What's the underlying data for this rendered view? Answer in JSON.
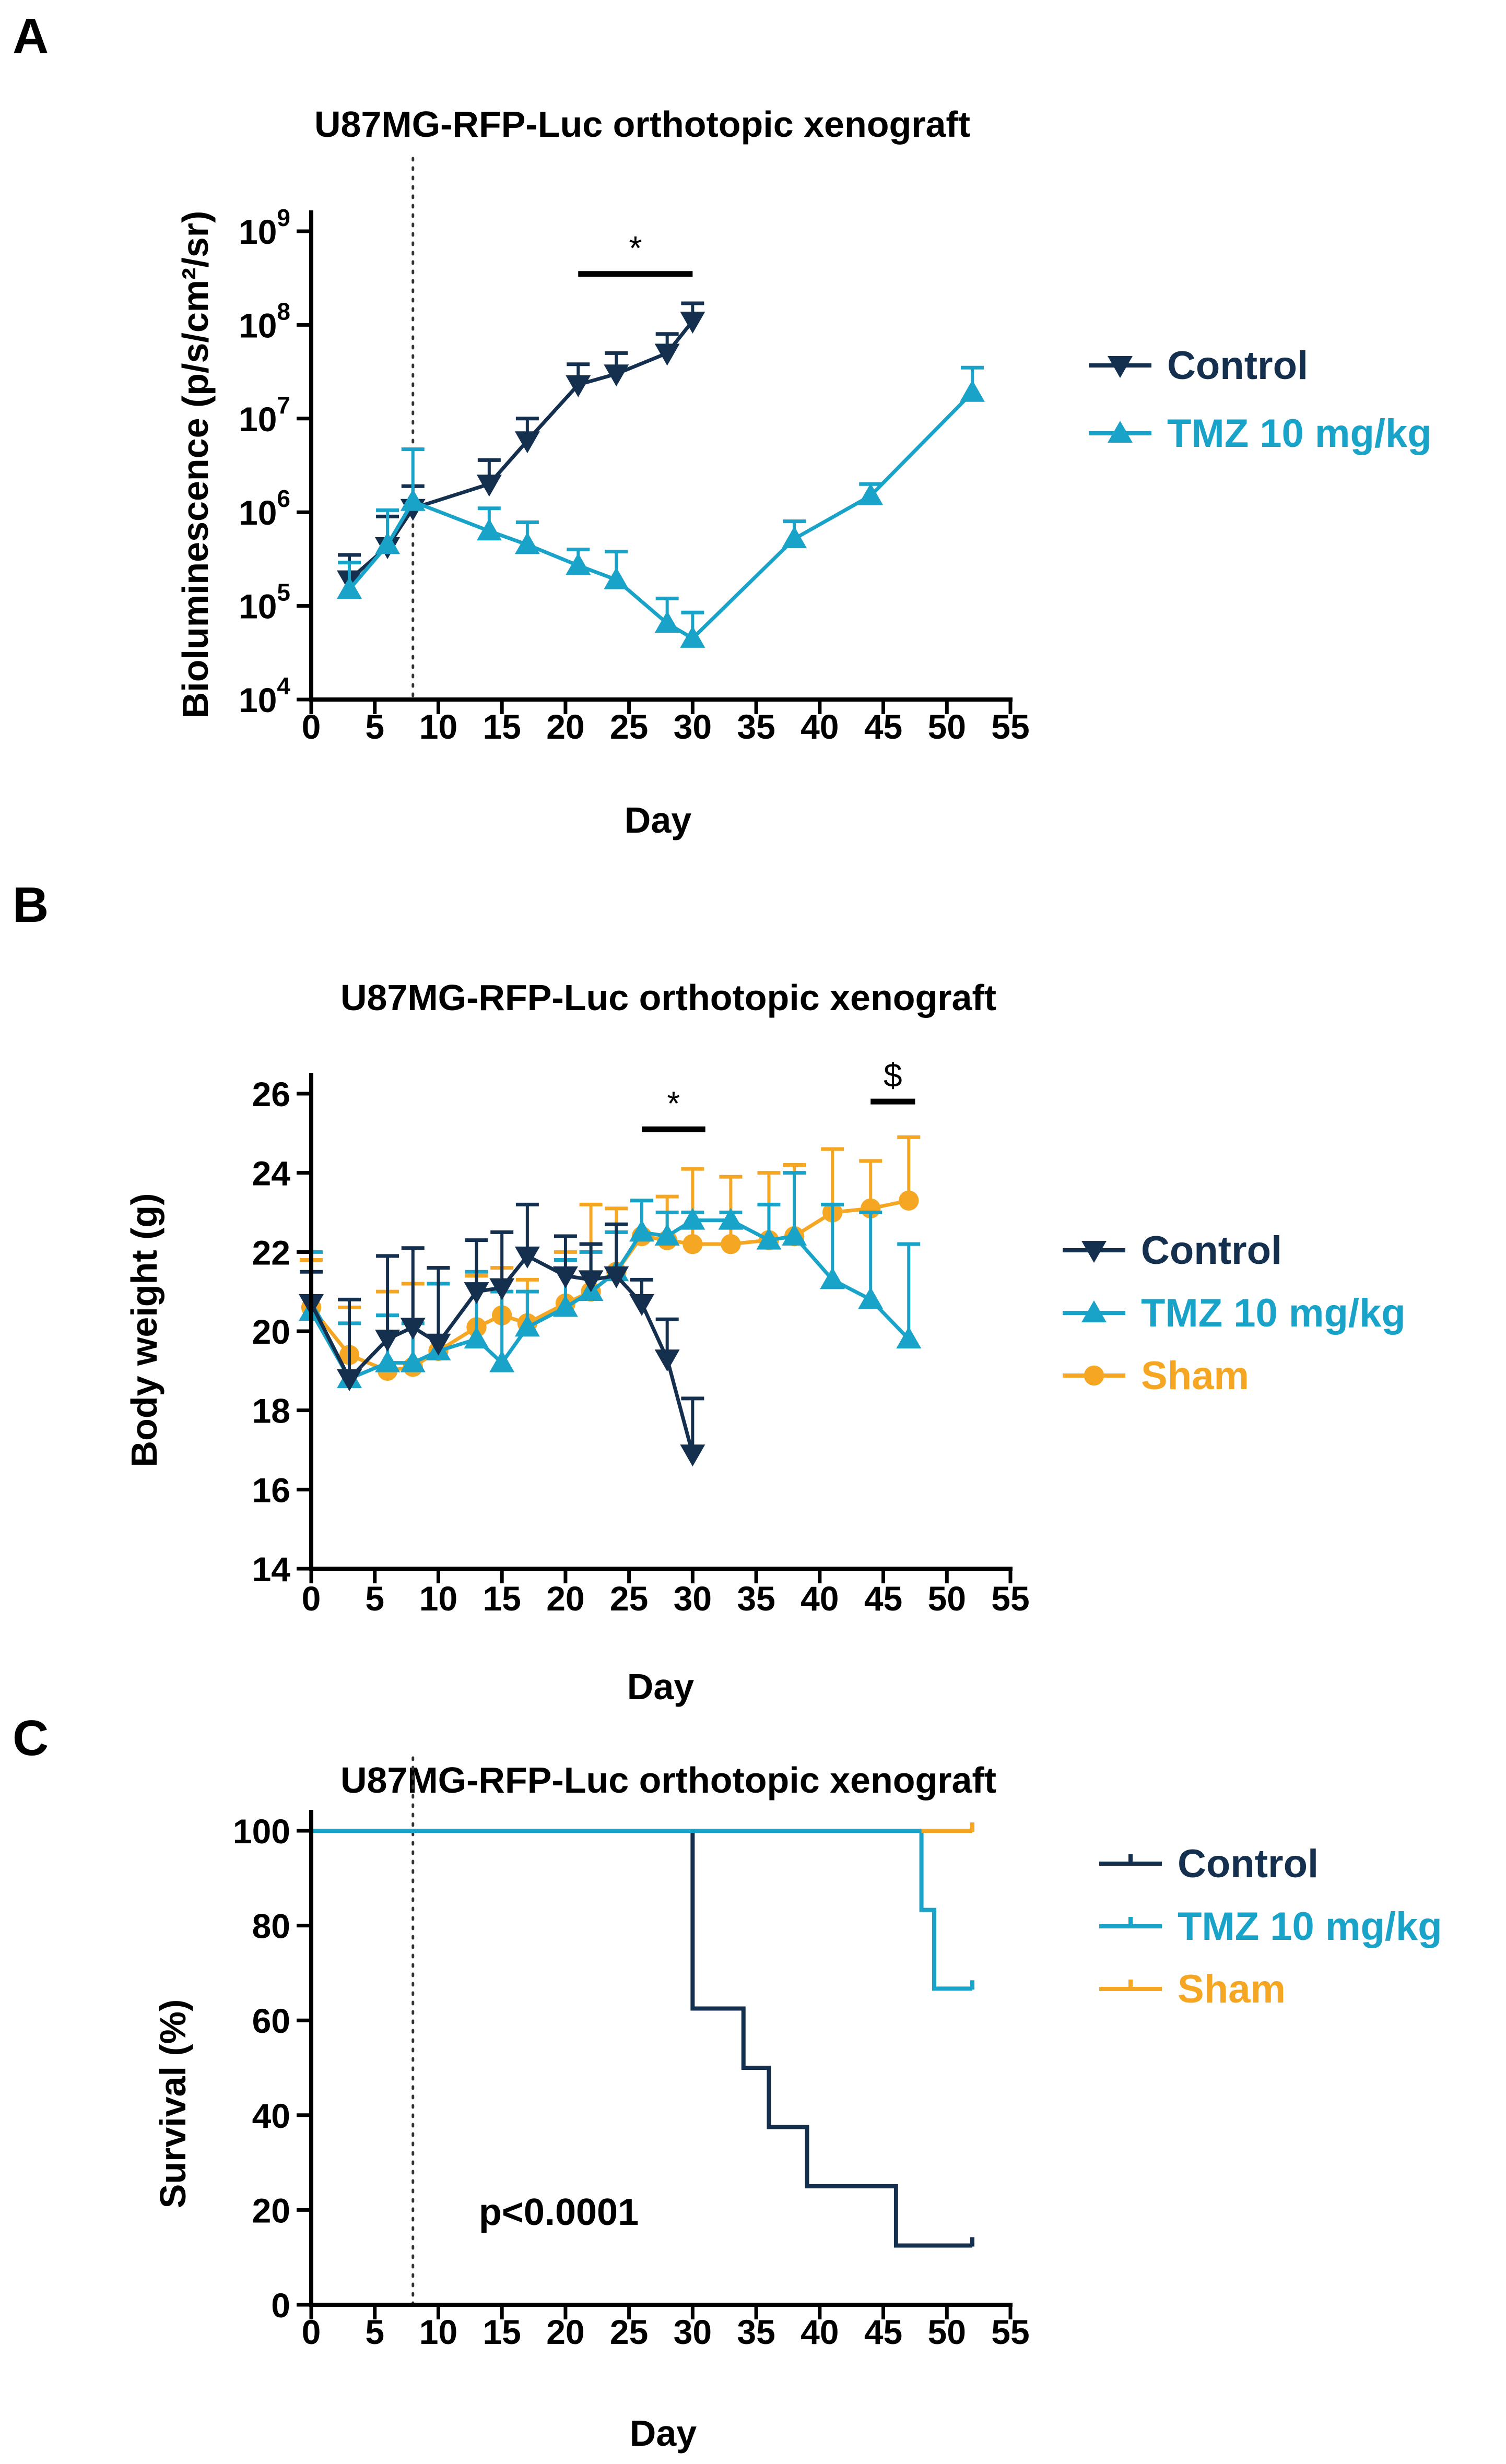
{
  "colors": {
    "control": "#15304F",
    "tmz": "#1AA3C9",
    "sham": "#F5A623",
    "axis": "#000000"
  },
  "chart_data": [
    {
      "panel": "A",
      "type": "line",
      "title": "U87MG-RFP-Luc orthotopic xenograft",
      "xlabel": "Day",
      "ylabel": "Bioluminescence (p/s/cm²/sr)",
      "yscale": "log",
      "xlim": [
        0,
        55
      ],
      "ylim": [
        10000,
        1000000000
      ],
      "xticks": [
        0,
        5,
        10,
        15,
        20,
        25,
        30,
        35,
        40,
        45,
        50,
        55
      ],
      "yticks": [
        {
          "value": 10000,
          "base": "10",
          "exp": "4"
        },
        {
          "value": 100000,
          "base": "10",
          "exp": "5"
        },
        {
          "value": 1000000,
          "base": "10",
          "exp": "6"
        },
        {
          "value": 10000000,
          "base": "10",
          "exp": "7"
        },
        {
          "value": 100000000,
          "base": "10",
          "exp": "8"
        },
        {
          "value": 1000000000,
          "base": "10",
          "exp": "9"
        }
      ],
      "vline_day": 8,
      "significance": [
        {
          "x_start": 21,
          "x_end": 30,
          "y": 350000000,
          "label": "*"
        }
      ],
      "legend": {
        "position": "right",
        "entries": [
          "Control",
          "TMZ 10 mg/kg"
        ]
      },
      "series": [
        {
          "name": "Control",
          "color_key": "control",
          "marker": "tri-down",
          "x": [
            3,
            6,
            8,
            14,
            17,
            21,
            24,
            28,
            30
          ],
          "y": [
            190000,
            430000,
            1100000,
            2000000,
            5800000,
            23000000,
            30000000,
            50000000,
            110000000
          ],
          "err": [
            350000,
            900000,
            1900000,
            3600000,
            10000000,
            38000000,
            50000000,
            80000000,
            170000000
          ]
        },
        {
          "name": "TMZ 10 mg/kg",
          "color_key": "tmz",
          "marker": "tri-up",
          "x": [
            3,
            6,
            8,
            14,
            17,
            21,
            24,
            28,
            30,
            38,
            44,
            52
          ],
          "y": [
            150000,
            450000,
            1300000,
            630000,
            450000,
            270000,
            190000,
            65000,
            45000,
            520000,
            1500000,
            19000000
          ],
          "err": [
            290000,
            1050000,
            4700000,
            1100000,
            780000,
            400000,
            380000,
            120000,
            85000,
            800000,
            2000000,
            35000000
          ]
        }
      ]
    },
    {
      "panel": "B",
      "type": "line",
      "title": "U87MG-RFP-Luc orthotopic xenograft",
      "xlabel": "Day",
      "ylabel": "Body weight (g)",
      "xlim": [
        0,
        55
      ],
      "ylim": [
        14,
        26
      ],
      "xticks": [
        0,
        5,
        10,
        15,
        20,
        25,
        30,
        35,
        40,
        45,
        50,
        55
      ],
      "yticks": [
        14,
        16,
        18,
        20,
        22,
        24,
        26
      ],
      "significance": [
        {
          "x_start": 26,
          "x_end": 31,
          "y": 25.1,
          "label": "*"
        },
        {
          "x_start": 44,
          "x_end": 47.5,
          "y": 25.8,
          "label": "$"
        }
      ],
      "legend": {
        "position": "right",
        "entries": [
          "Control",
          "TMZ 10 mg/kg",
          "Sham"
        ]
      },
      "series": [
        {
          "name": "Sham",
          "color_key": "sham",
          "marker": "circle",
          "x": [
            0,
            3,
            6,
            8,
            10,
            13,
            15,
            17,
            20,
            22,
            24,
            26,
            28,
            30,
            33,
            36,
            38,
            41,
            44,
            47
          ],
          "y": [
            20.6,
            19.4,
            19.0,
            19.1,
            19.5,
            20.1,
            20.4,
            20.2,
            20.7,
            21.0,
            21.5,
            22.4,
            22.3,
            22.2,
            22.2,
            22.3,
            22.4,
            23.0,
            23.1,
            23.3
          ],
          "err": [
            21.8,
            20.6,
            21.0,
            21.2,
            21.6,
            21.4,
            21.6,
            21.3,
            22.0,
            23.2,
            23.1,
            23.3,
            23.4,
            24.1,
            23.9,
            24.0,
            24.2,
            24.6,
            24.3,
            24.9
          ]
        },
        {
          "name": "TMZ 10 mg/kg",
          "color_key": "tmz",
          "marker": "tri-up",
          "x": [
            0,
            3,
            6,
            8,
            10,
            13,
            15,
            17,
            20,
            22,
            24,
            26,
            28,
            30,
            33,
            36,
            38,
            41,
            44,
            47
          ],
          "y": [
            20.5,
            18.8,
            19.2,
            19.2,
            19.5,
            19.8,
            19.2,
            20.1,
            20.6,
            21.0,
            21.5,
            22.5,
            22.4,
            22.8,
            22.8,
            22.3,
            22.4,
            21.3,
            20.8,
            19.8
          ],
          "err": [
            22.0,
            20.2,
            20.4,
            20.2,
            21.2,
            21.5,
            21.0,
            21.0,
            21.8,
            22.0,
            22.5,
            23.3,
            23.0,
            23.0,
            23.0,
            23.2,
            24.0,
            23.2,
            23.0,
            22.2
          ]
        },
        {
          "name": "Control",
          "color_key": "control",
          "marker": "tri-down",
          "x": [
            0,
            3,
            6,
            8,
            10,
            13,
            15,
            17,
            20,
            22,
            24,
            26,
            28,
            30
          ],
          "y": [
            20.7,
            18.8,
            19.8,
            20.1,
            19.7,
            21.0,
            21.1,
            21.9,
            21.4,
            21.3,
            21.4,
            20.7,
            19.3,
            16.9
          ],
          "err": [
            21.5,
            20.8,
            21.9,
            22.1,
            21.6,
            22.3,
            22.5,
            23.2,
            22.4,
            22.2,
            22.7,
            21.3,
            20.3,
            18.3
          ]
        }
      ]
    },
    {
      "panel": "C",
      "type": "line",
      "subtype": "step",
      "title": "U87MG-RFP-Luc orthotopic xenograft",
      "xlabel": "Day",
      "ylabel": "Survival (%)",
      "xlim": [
        0,
        55
      ],
      "ylim": [
        0,
        100
      ],
      "xticks": [
        0,
        5,
        10,
        15,
        20,
        25,
        30,
        35,
        40,
        45,
        50,
        55
      ],
      "yticks": [
        0,
        20,
        40,
        60,
        80,
        100
      ],
      "vline_day": 8,
      "annotation": "p<0.0001",
      "legend": {
        "position": "right",
        "entries": [
          "Control",
          "TMZ 10 mg/kg",
          "Sham"
        ]
      },
      "series": [
        {
          "name": "Control",
          "color_key": "control",
          "x": [
            0,
            30,
            30,
            34,
            34,
            36,
            36,
            39,
            39,
            46,
            46,
            52
          ],
          "y": [
            100,
            100,
            62.5,
            62.5,
            50,
            50,
            37.5,
            37.5,
            25,
            25,
            12.5,
            12.5
          ]
        },
        {
          "name": "TMZ 10 mg/kg",
          "color_key": "tmz",
          "x": [
            0,
            48,
            48,
            49,
            49,
            52
          ],
          "y": [
            100,
            100,
            83.3,
            83.3,
            66.7,
            66.7
          ]
        },
        {
          "name": "Sham",
          "color_key": "sham",
          "x": [
            48,
            52
          ],
          "y": [
            100,
            100
          ]
        }
      ]
    }
  ]
}
